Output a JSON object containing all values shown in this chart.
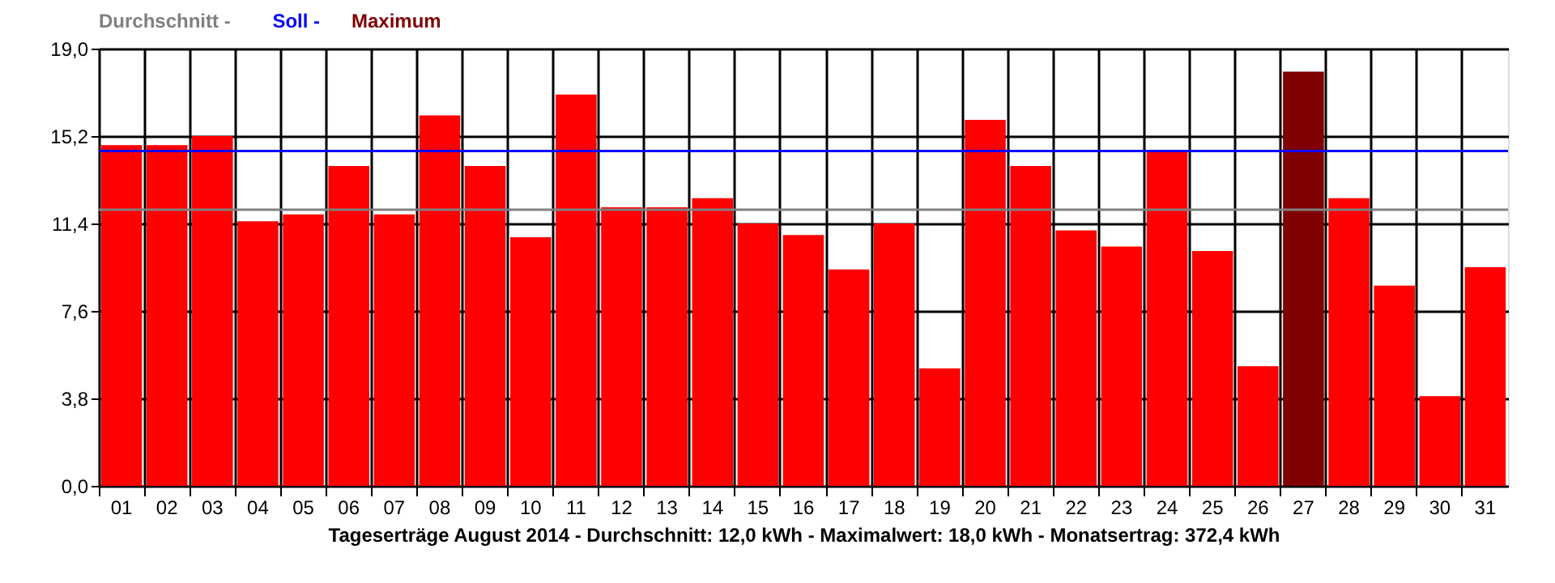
{
  "chart_data": {
    "type": "bar",
    "xlabel": "Tageserträge August 2014 - Durchschnitt: 12,0 kWh - Maximalwert: 18,0 kWh - Monatsertrag: 372,4 kWh",
    "categories": [
      "01",
      "02",
      "03",
      "04",
      "05",
      "06",
      "07",
      "08",
      "09",
      "10",
      "11",
      "12",
      "13",
      "14",
      "15",
      "16",
      "17",
      "18",
      "19",
      "20",
      "21",
      "22",
      "23",
      "24",
      "25",
      "26",
      "27",
      "28",
      "29",
      "30",
      "31"
    ],
    "values": [
      14.8,
      14.8,
      15.2,
      11.5,
      11.8,
      13.9,
      11.8,
      16.1,
      13.9,
      10.8,
      17.0,
      12.1,
      12.1,
      12.5,
      11.4,
      10.9,
      9.4,
      11.4,
      5.1,
      15.9,
      13.9,
      11.1,
      10.4,
      14.6,
      10.2,
      5.2,
      18.0,
      12.5,
      8.7,
      3.9,
      9.5
    ],
    "colors": [
      "#ff0000",
      "#ff0000",
      "#ff0000",
      "#ff0000",
      "#ff0000",
      "#ff0000",
      "#ff0000",
      "#ff0000",
      "#ff0000",
      "#ff0000",
      "#ff0000",
      "#ff0000",
      "#ff0000",
      "#ff0000",
      "#ff0000",
      "#ff0000",
      "#ff0000",
      "#ff0000",
      "#ff0000",
      "#ff0000",
      "#ff0000",
      "#ff0000",
      "#ff0000",
      "#ff0000",
      "#ff0000",
      "#ff0000",
      "#800000",
      "#ff0000",
      "#ff0000",
      "#ff0000",
      "#ff0000"
    ],
    "ylim": [
      0,
      19
    ],
    "yticks": [
      {
        "value": 0,
        "label": "0,0"
      },
      {
        "value": 3.8,
        "label": "3,8"
      },
      {
        "value": 7.6,
        "label": "7,6"
      },
      {
        "value": 11.4,
        "label": "11,4"
      },
      {
        "value": 15.2,
        "label": "15,2"
      },
      {
        "value": 19,
        "label": "19,0"
      }
    ],
    "ref_lines": [
      {
        "axis": "y",
        "value": 12.0,
        "label": "Durchschnitt -",
        "color": "#808080"
      },
      {
        "axis": "y",
        "value": 14.55,
        "label": "Soll -",
        "color": "#0000ff"
      }
    ],
    "annotations": [
      "Maximum"
    ],
    "grid": true,
    "legend": "top left"
  }
}
